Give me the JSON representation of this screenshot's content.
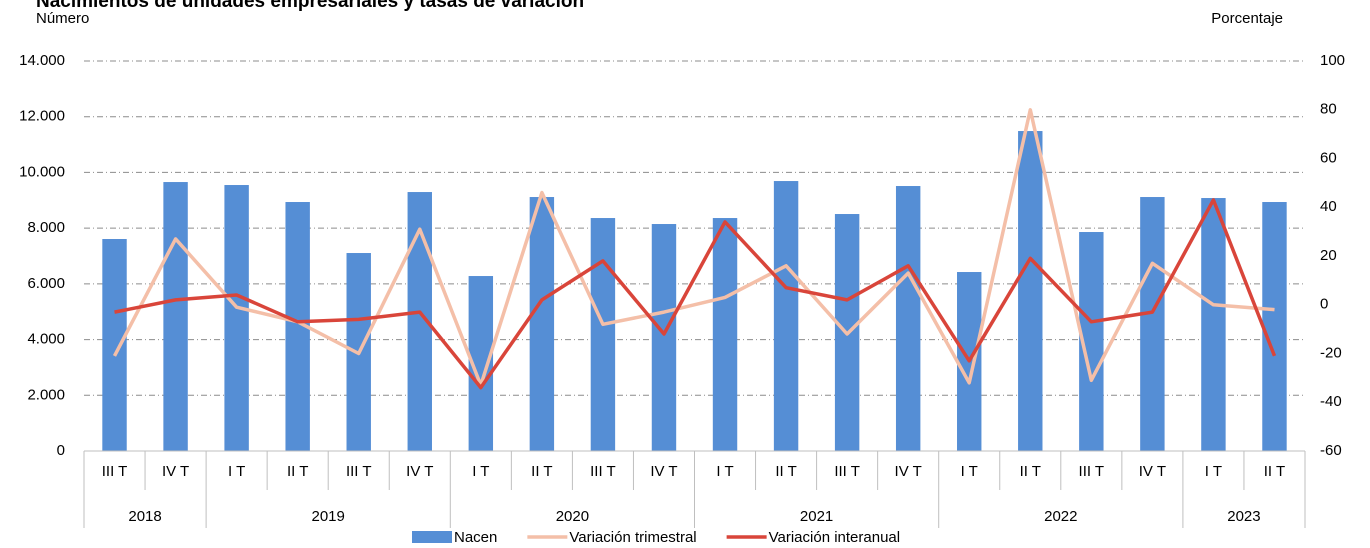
{
  "chart_data": {
    "type": "bar_line",
    "title": "Nacimientos de unidades empresariales y tasas de variación",
    "y_label": "Número",
    "y2_label": "Porcentaje",
    "category_groups": [
      {
        "name": "2018",
        "categories": [
          "III T",
          "IV T"
        ]
      },
      {
        "name": "2019",
        "categories": [
          "I T",
          "II T",
          "III T",
          "IV T"
        ]
      },
      {
        "name": "2020",
        "categories": [
          "I T",
          "II T",
          "III T",
          "IV T"
        ]
      },
      {
        "name": "2021",
        "categories": [
          "I T",
          "II T",
          "III T",
          "IV T"
        ]
      },
      {
        "name": "2022",
        "categories": [
          "I T",
          "II T",
          "III T",
          "IV T"
        ]
      },
      {
        "name": "2023",
        "categories": [
          "I T",
          "II T"
        ]
      }
    ],
    "series": [
      {
        "name": "Nacen",
        "kind": "bar",
        "color": "#558ed5",
        "values": [
          7610,
          9655,
          9548,
          8938,
          7107,
          9296,
          6281,
          9117,
          8363,
          8148,
          8363,
          9691,
          8507,
          9512,
          6425,
          11486,
          7861,
          9117,
          9081,
          8938
        ]
      },
      {
        "name": "Variación trimestral",
        "kind": "line",
        "axis": "y2",
        "color": "#f4bfa8",
        "values": [
          -21,
          27,
          -1,
          -7,
          -20,
          31,
          -33,
          46,
          -8,
          -3,
          3,
          16,
          -12,
          13,
          -32,
          80,
          -31,
          17,
          0,
          -2
        ]
      },
      {
        "name": "Variación interanual",
        "kind": "line",
        "axis": "y2",
        "color": "#d9453a",
        "values": [
          -3,
          2,
          4,
          -7,
          -6,
          -3,
          -34,
          2,
          18,
          -12,
          34,
          7,
          2,
          16,
          -23,
          19,
          -7,
          -3,
          43,
          -21
        ]
      }
    ],
    "ylim": [
      0,
      14000
    ],
    "yticks": [
      0,
      {
        "value": 2000,
        "label": "2.000"
      },
      {
        "value": 4000,
        "label": "4.000"
      },
      {
        "value": 6000,
        "label": "6.000"
      },
      {
        "value": 8000,
        "label": "8.000"
      },
      {
        "value": 10000,
        "label": "10.000"
      },
      {
        "value": 12000,
        "label": "12.000"
      },
      {
        "value": 14000,
        "label": "14.000"
      }
    ],
    "y2lim": [
      -60,
      100
    ],
    "y2ticks": [
      -60,
      -40,
      -20,
      0,
      20,
      40,
      60,
      80,
      100
    ],
    "grid": true
  }
}
